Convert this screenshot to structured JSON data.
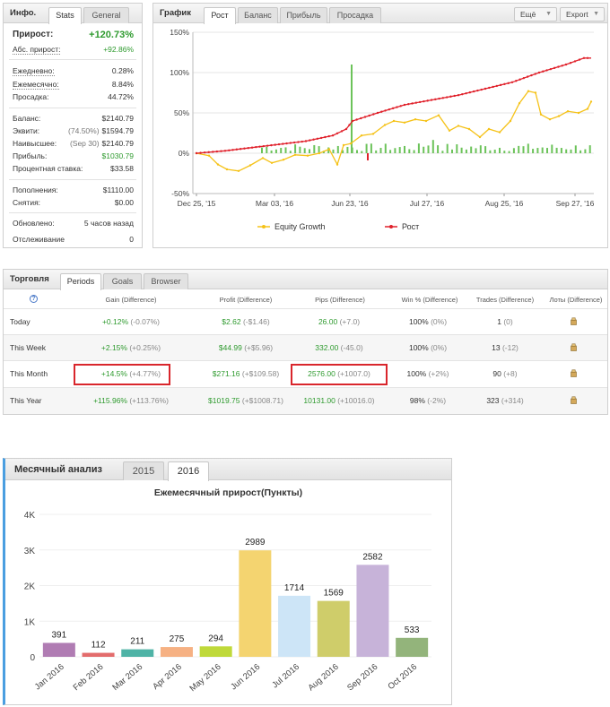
{
  "info": {
    "title": "Инфо.",
    "tabs": [
      "Stats",
      "General"
    ],
    "growth_label": "Прирост:",
    "growth_value": "+120.73%",
    "abs_label": "Абс. прирост:",
    "abs_value": "+92.86%",
    "daily_label": "Ежедневно:",
    "daily_value": "0.28%",
    "monthly_label": "Ежемесячно:",
    "monthly_value": "8.84%",
    "drawdown_label": "Просадка:",
    "drawdown_value": "44.72%",
    "balance_label": "Баланс:",
    "balance_value": "$2140.79",
    "equity_label": "Эквити:",
    "equity_pct": "(74.50%)",
    "equity_value": "$1594.79",
    "highest_label": "Наивысшее:",
    "highest_date": "(Sep 30)",
    "highest_value": "$2140.79",
    "profit_label": "Прибыль:",
    "profit_value": "$1030.79",
    "interest_label": "Процентная ставка:",
    "interest_value": "$33.58",
    "deposits_label": "Пополнения:",
    "deposits_value": "$1110.00",
    "withdrawals_label": "Снятия:",
    "withdrawals_value": "$0.00",
    "updated_label": "Обновлено:",
    "updated_value": "5 часов назад",
    "tracking_label": "Отслеживание",
    "tracking_value": "0"
  },
  "graph": {
    "title": "График",
    "tabs": [
      "Рост",
      "Баланс",
      "Прибыль",
      "Просадка"
    ],
    "button_more": "Ещё",
    "button_export": "Export",
    "y_ticks": [
      "150%",
      "100%",
      "50%",
      "0%",
      "-50%"
    ],
    "x_ticks": [
      "Dec 25, '15",
      "Mar 03, '16",
      "Jun 23, '16",
      "Jul 27, '16",
      "Aug 25, '16",
      "Sep 27, '16"
    ],
    "legend": [
      "Equity Growth",
      "Рост"
    ],
    "colors": {
      "equity": "#f5c218",
      "growth": "#e0212b",
      "profit_bar": "#6cc35a",
      "loss_bar": "#e0212b"
    }
  },
  "trading": {
    "title": "Торговля",
    "tabs": [
      "Periods",
      "Goals",
      "Browser"
    ],
    "help": "?",
    "headers": [
      "Gain (Difference)",
      "Profit (Difference)",
      "Pips (Difference)",
      "Win % (Difference)",
      "Trades (Difference)",
      "Лоты (Difference)"
    ],
    "rows": [
      {
        "period": "Today",
        "gain": "+0.12%",
        "gain_d": "(-0.07%)",
        "profit": "$2.62",
        "profit_d": "(-$1.46)",
        "pips": "26.00",
        "pips_d": "(+7.0)",
        "win": "100%",
        "win_d": "(0%)",
        "trades": "1",
        "trades_d": "(0)"
      },
      {
        "period": "This Week",
        "gain": "+2.15%",
        "gain_d": "(+0.25%)",
        "profit": "$44.99",
        "profit_d": "(+$5.96)",
        "pips": "332.00",
        "pips_d": "(-45.0)",
        "win": "100%",
        "win_d": "(0%)",
        "trades": "13",
        "trades_d": "(-12)"
      },
      {
        "period": "This Month",
        "gain": "+14.5%",
        "gain_d": "(+4.77%)",
        "profit": "$271.16",
        "profit_d": "(+$109.58)",
        "pips": "2576.00",
        "pips_d": "(+1007.0)",
        "win": "100%",
        "win_d": "(+2%)",
        "trades": "90",
        "trades_d": "(+8)"
      },
      {
        "period": "This Year",
        "gain": "+115.96%",
        "gain_d": "(+113.76%)",
        "profit": "$1019.75",
        "profit_d": "(+$1008.71)",
        "pips": "10131.00",
        "pips_d": "(+10016.0)",
        "win": "98%",
        "win_d": "(-2%)",
        "trades": "323",
        "trades_d": "(+314)"
      }
    ]
  },
  "monthly": {
    "title": "Месячный анализ",
    "tabs": [
      "2015",
      "2016"
    ]
  },
  "chart_data": {
    "type": "bar",
    "title": "Ежемесячный прирост(Пункты)",
    "categories": [
      "Jan 2016",
      "Feb 2016",
      "Mar 2016",
      "Apr 2016",
      "May 2016",
      "Jun 2016",
      "Jul 2016",
      "Aug 2016",
      "Sep 2016",
      "Oct 2016"
    ],
    "values": [
      391,
      112,
      211,
      275,
      294,
      2989,
      1714,
      1569,
      2582,
      533
    ],
    "y_ticks": [
      "4K",
      "3K",
      "2K",
      "1K",
      "0"
    ],
    "ylim": [
      0,
      4000
    ],
    "colors": [
      "#b07cb3",
      "#e36c6c",
      "#4fb3a6",
      "#f6b183",
      "#bfd93a",
      "#f4d470",
      "#cde5f7",
      "#cfcd6a",
      "#c7b3d9",
      "#93b47b"
    ]
  }
}
